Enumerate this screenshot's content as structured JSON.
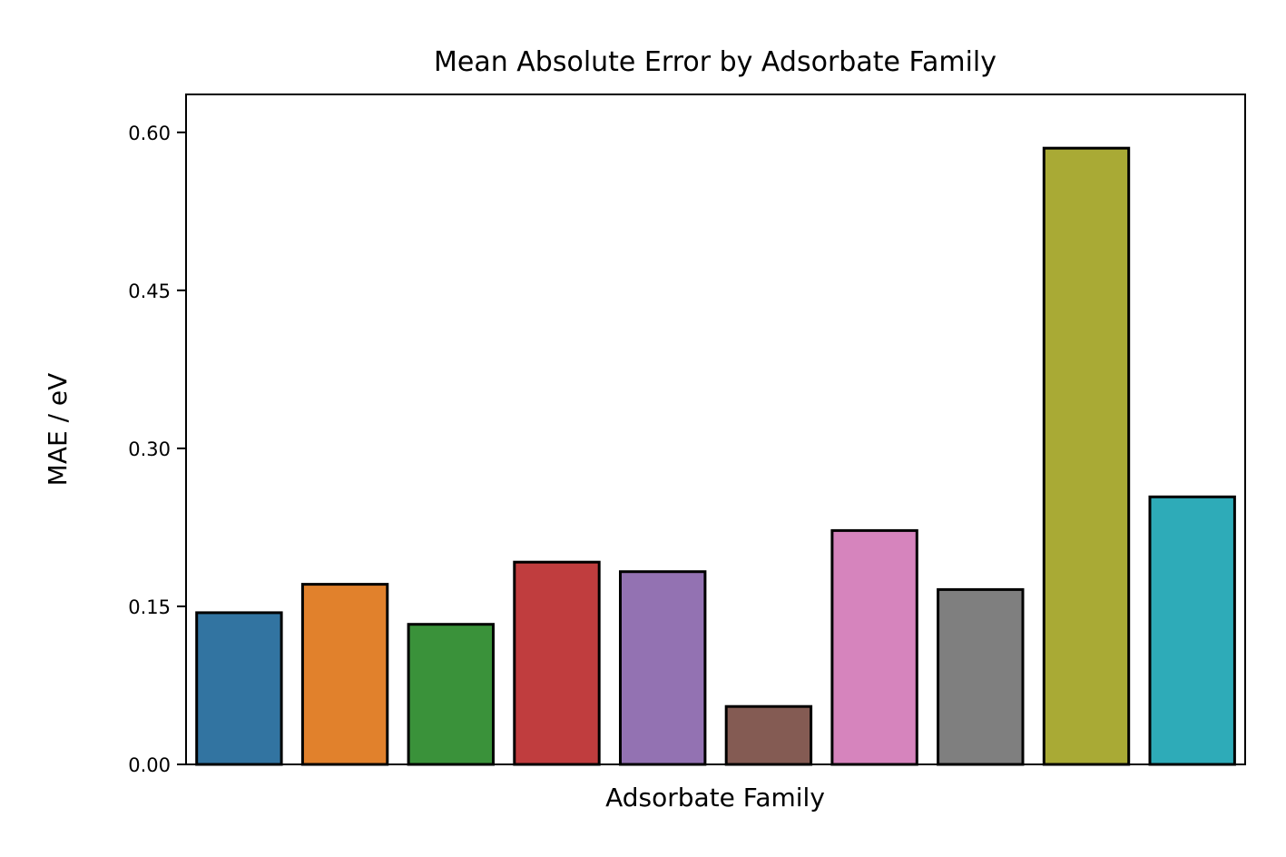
{
  "chart_data": {
    "type": "bar",
    "title": "Mean Absolute Error by Adsorbate Family",
    "xlabel": "Adsorbate Family",
    "ylabel": "MAE / eV",
    "categories": [
      "",
      "",
      "",
      "",
      "",
      "",
      "",
      "",
      "",
      ""
    ],
    "values": [
      0.144,
      0.171,
      0.133,
      0.192,
      0.183,
      0.055,
      0.222,
      0.166,
      0.585,
      0.254
    ],
    "colors": [
      "#3274a1",
      "#e1812c",
      "#3a923a",
      "#c03d3e",
      "#9372b2",
      "#845b53",
      "#d684bd",
      "#7f7f7f",
      "#a9aa35",
      "#2eabb8"
    ],
    "ylim": [
      0,
      0.636
    ],
    "yticks": [
      "0.00",
      "0.15",
      "0.30",
      "0.45",
      "0.60"
    ],
    "ytick_values": [
      0,
      0.15,
      0.3,
      0.45,
      0.6
    ],
    "grid": false,
    "legend": "none"
  }
}
